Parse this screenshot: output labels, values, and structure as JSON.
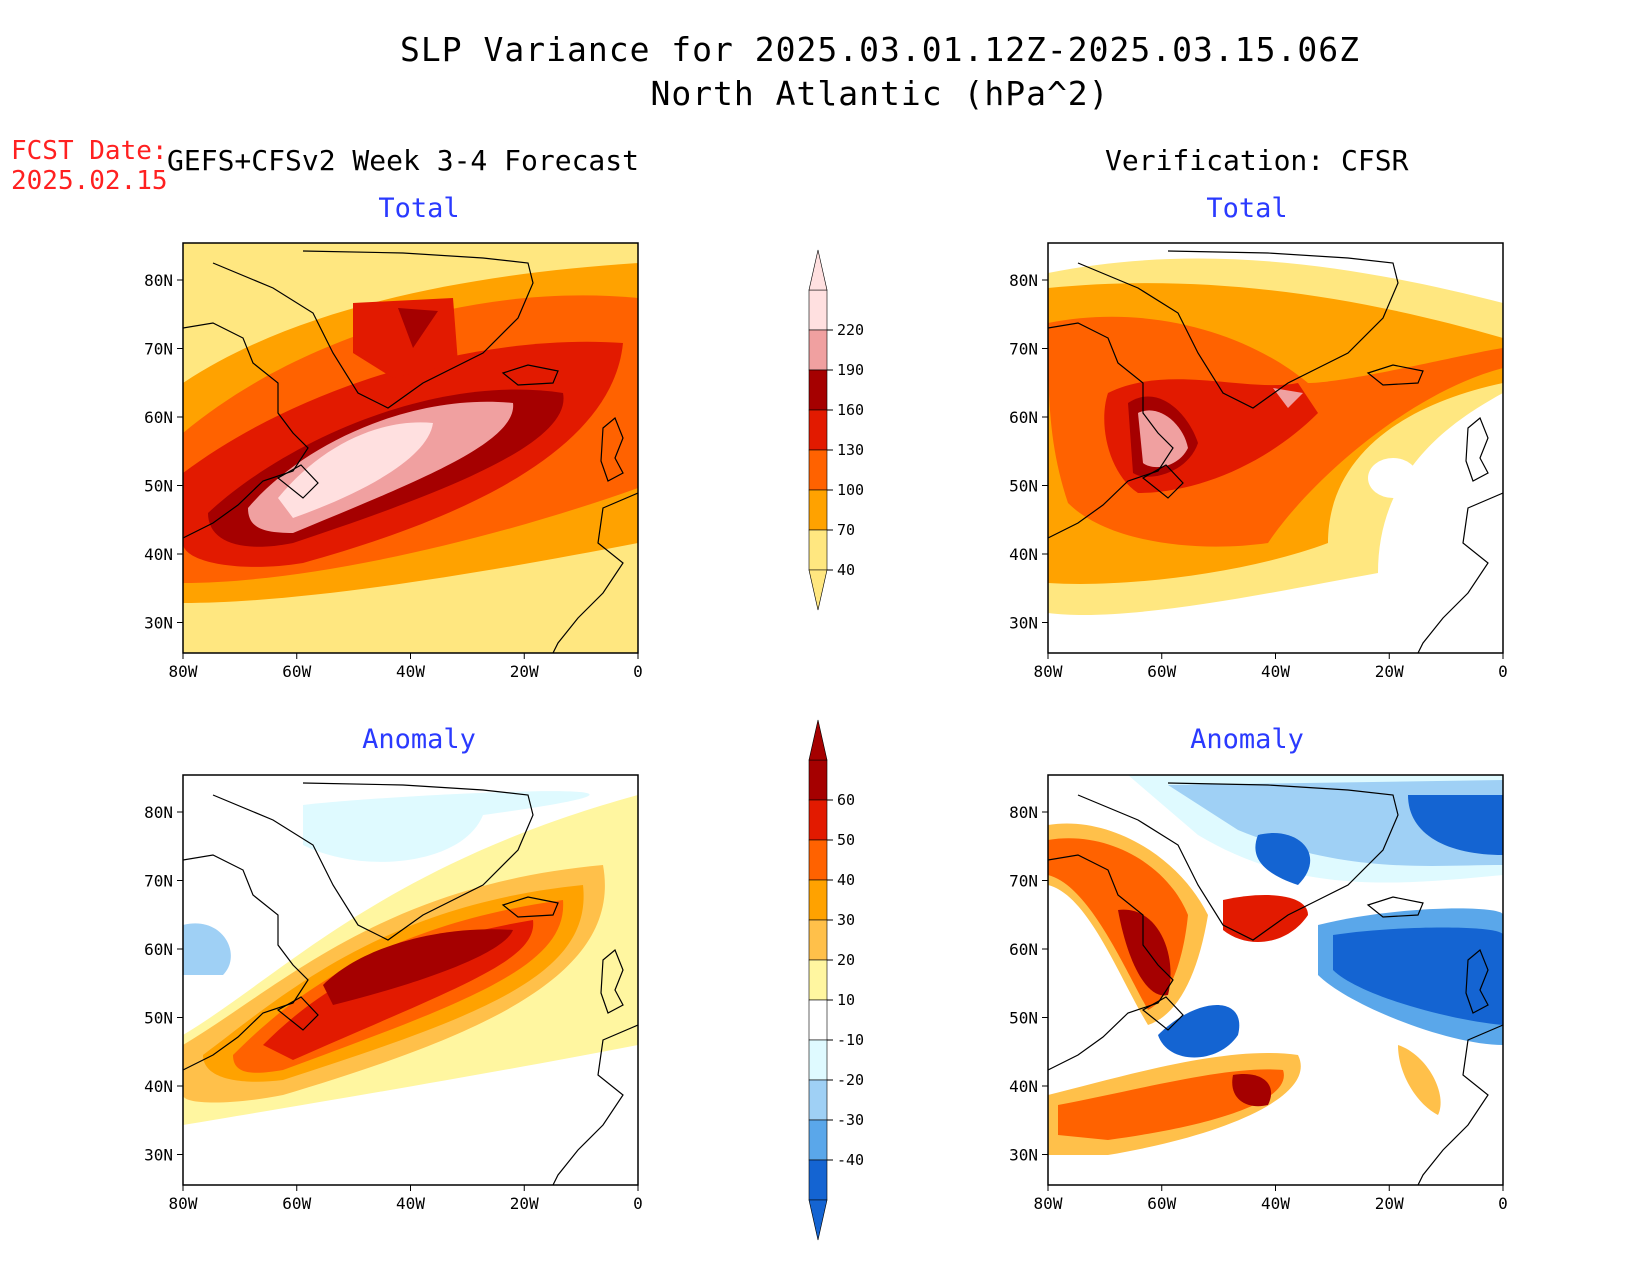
{
  "title": {
    "line1": "SLP Variance for 2025.03.01.12Z-2025.03.15.06Z",
    "line2": "North Atlantic (hPa^2)"
  },
  "fcst": {
    "label": "FCST Date:",
    "date": "2025.02.15"
  },
  "headings": {
    "left": "GEFS+CFSv2 Week 3-4 Forecast",
    "right": "Verification: CFSR"
  },
  "panels": {
    "fcst_total": "Total",
    "verif_total": "Total",
    "fcst_anomaly": "Anomaly",
    "verif_anomaly": "Anomaly"
  },
  "axes": {
    "lon_labels": [
      "80W",
      "60W",
      "40W",
      "20W",
      "0"
    ],
    "lat_labels": [
      "80N",
      "70N",
      "60N",
      "50N",
      "40N",
      "30N"
    ]
  },
  "colorbars": {
    "total": {
      "levels": [
        "40",
        "70",
        "100",
        "130",
        "160",
        "190",
        "220"
      ],
      "colors": [
        "#ffe780",
        "#ffa200",
        "#ff6200",
        "#e21a00",
        "#a50000",
        "#f0a0a0",
        "#ffe0e0"
      ]
    },
    "anomaly": {
      "levels": [
        "60",
        "50",
        "40",
        "30",
        "20",
        "10",
        "-10",
        "-20",
        "-30",
        "-40"
      ],
      "colors": [
        "#a50000",
        "#e21a00",
        "#ff6200",
        "#ffa200",
        "#ffc04a",
        "#fff6a0",
        "#ffffff",
        "#dffaff",
        "#9fd0f5",
        "#5aa7ea",
        "#1464d2"
      ]
    }
  },
  "colors": {
    "fcst_label": "#ff2020",
    "panel_title": "#2a3aff"
  }
}
